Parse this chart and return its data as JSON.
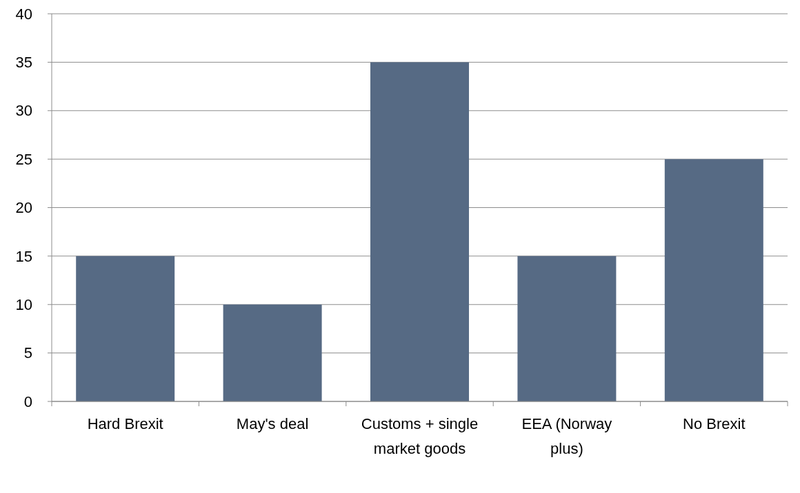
{
  "chart_data": {
    "type": "bar",
    "categories": [
      "Hard Brexit",
      "May's deal",
      "Customs + single market goods",
      "EEA (Norway plus)",
      "No Brexit"
    ],
    "values": [
      15,
      10,
      35,
      15,
      25
    ],
    "color": "#566a84",
    "ylim": [
      0,
      40
    ],
    "yticks": [
      0,
      5,
      10,
      15,
      20,
      25,
      30,
      35,
      40
    ],
    "grid": "y"
  }
}
